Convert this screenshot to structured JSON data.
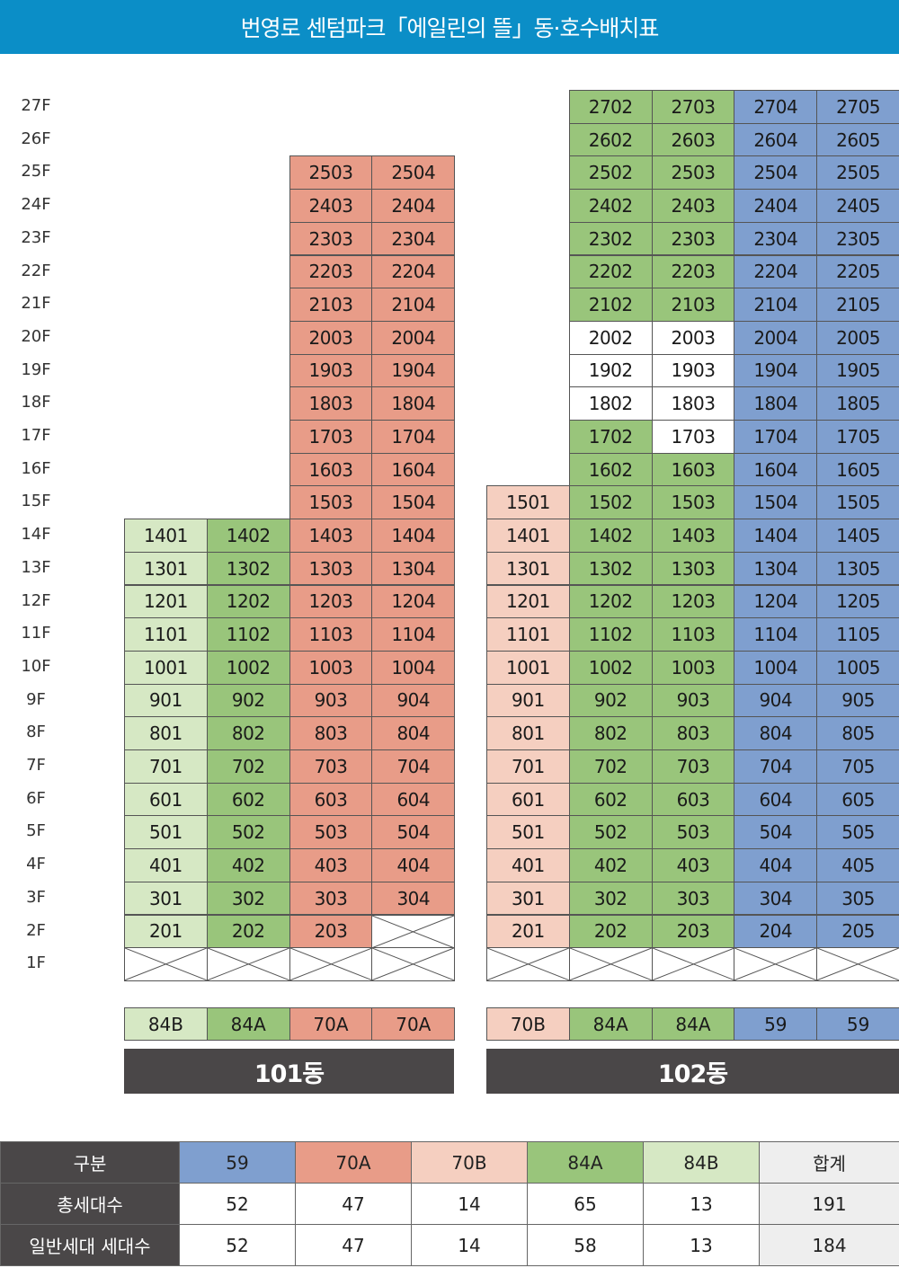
{
  "title": "번영로 센텀파크「에일린의 뜰」동·호수배치표",
  "colors": {
    "59": "#7f9fcf",
    "70A": "#e89c88",
    "70B": "#f5cfc0",
    "84A": "#99c57b",
    "84B": "#d6e8c4",
    "white": "#ffffff",
    "header": "#0b8ec7",
    "dark": "#4a4748"
  },
  "floors": [
    "27F",
    "26F",
    "25F",
    "24F",
    "23F",
    "22F",
    "21F",
    "20F",
    "19F",
    "18F",
    "17F",
    "16F",
    "15F",
    "14F",
    "13F",
    "12F",
    "11F",
    "10F",
    "9F",
    "8F",
    "7F",
    "6F",
    "5F",
    "4F",
    "3F",
    "2F",
    "1F"
  ],
  "buildings": [
    {
      "name": "101동",
      "columns": [
        {
          "type": "84B",
          "line": "01",
          "top_floor": 14
        },
        {
          "type": "84A",
          "line": "02",
          "top_floor": 14
        },
        {
          "type": "70A",
          "line": "03",
          "top_floor": 25
        },
        {
          "type": "70A",
          "line": "04",
          "top_floor": 25,
          "x_floors": [
            2
          ]
        }
      ],
      "white_units": []
    },
    {
      "name": "102동",
      "columns": [
        {
          "type": "70B",
          "line": "01",
          "top_floor": 15
        },
        {
          "type": "84A",
          "line": "02",
          "top_floor": 27
        },
        {
          "type": "84A",
          "line": "03",
          "top_floor": 27
        },
        {
          "type": "59",
          "line": "04",
          "top_floor": 27
        },
        {
          "type": "59",
          "line": "05",
          "top_floor": 27
        }
      ],
      "white_units": [
        "2002",
        "2003",
        "1902",
        "1903",
        "1802",
        "1803",
        "1703"
      ]
    }
  ],
  "summary": {
    "headers": [
      "구분",
      "59",
      "70A",
      "70B",
      "84A",
      "84B",
      "합계"
    ],
    "rows": [
      [
        "총세대수",
        "52",
        "47",
        "14",
        "65",
        "13",
        "191"
      ],
      [
        "일반세대 세대수",
        "52",
        "47",
        "14",
        "58",
        "13",
        "184"
      ]
    ]
  }
}
